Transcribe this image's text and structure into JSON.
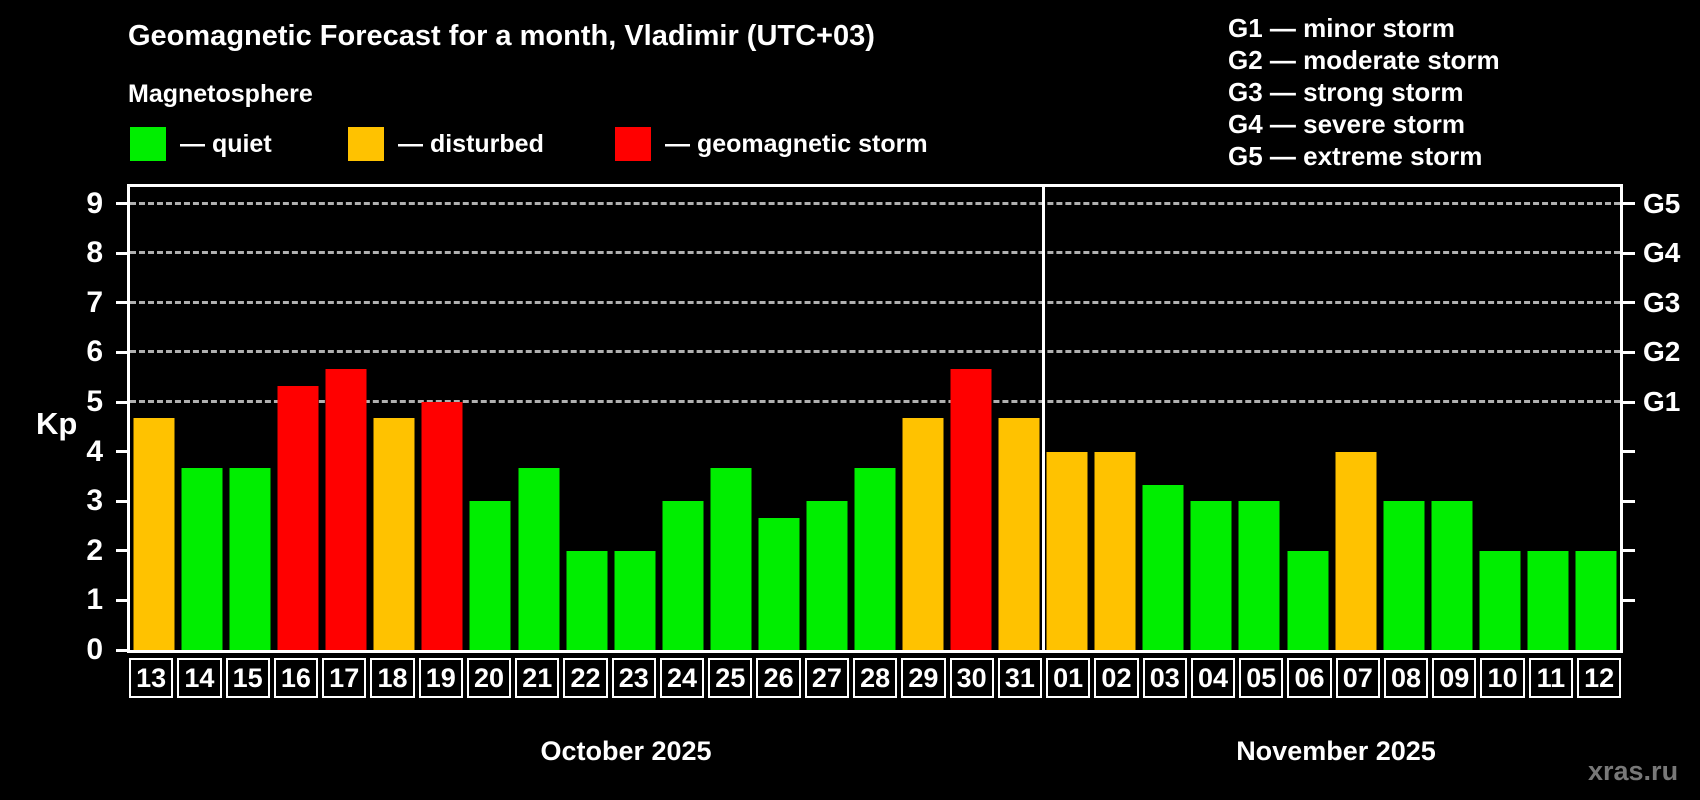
{
  "header": {
    "title": "Geomagnetic Forecast for a month, Vladimir (UTC+03)",
    "subtitle": "Magnetosphere"
  },
  "legend": {
    "items": [
      {
        "key": "quiet",
        "label": "— quiet",
        "color": "#00ee00"
      },
      {
        "key": "disturbed",
        "label": "— disturbed",
        "color": "#ffc200"
      },
      {
        "key": "storm",
        "label": "— geomagnetic storm",
        "color": "#ff0000"
      }
    ]
  },
  "storm_scale_legend": {
    "items": [
      "G1 — minor storm",
      "G2 — moderate storm",
      "G3 — strong storm",
      "G4 — severe storm",
      "G5 — extreme storm"
    ]
  },
  "watermark": "xras.ru",
  "colors": {
    "background": "#000000",
    "text": "#ffffff",
    "gridline": "#b0b0b0",
    "axis": "#ffffff",
    "quiet": "#00ee00",
    "disturbed": "#ffc200",
    "storm": "#ff0000",
    "watermark": "#787878"
  },
  "chart_data": {
    "type": "bar",
    "title": "Geomagnetic Forecast for a month, Vladimir (UTC+03)",
    "ylabel": "Kp",
    "ylim": [
      0,
      9.4
    ],
    "yticks": [
      0,
      1,
      2,
      3,
      4,
      5,
      6,
      7,
      8,
      9
    ],
    "gridlines_at": [
      5,
      6,
      7,
      8,
      9
    ],
    "grid": "dashed horizontal at storm levels only",
    "legend_position": "top-left",
    "right_axis": [
      {
        "kp": 5,
        "label": "G1"
      },
      {
        "kp": 6,
        "label": "G2"
      },
      {
        "kp": 7,
        "label": "G3"
      },
      {
        "kp": 8,
        "label": "G4"
      },
      {
        "kp": 9,
        "label": "G5"
      }
    ],
    "status_colors": {
      "quiet": "#00ee00",
      "disturbed": "#ffc200",
      "storm": "#ff0000"
    },
    "months": [
      {
        "label": "October 2025",
        "days": [
          {
            "day": "13",
            "kp": 4.67,
            "status": "disturbed"
          },
          {
            "day": "14",
            "kp": 3.67,
            "status": "quiet"
          },
          {
            "day": "15",
            "kp": 3.67,
            "status": "quiet"
          },
          {
            "day": "16",
            "kp": 5.33,
            "status": "storm"
          },
          {
            "day": "17",
            "kp": 5.67,
            "status": "storm"
          },
          {
            "day": "18",
            "kp": 4.67,
            "status": "disturbed"
          },
          {
            "day": "19",
            "kp": 5.0,
            "status": "storm"
          },
          {
            "day": "20",
            "kp": 3.0,
            "status": "quiet"
          },
          {
            "day": "21",
            "kp": 3.67,
            "status": "quiet"
          },
          {
            "day": "22",
            "kp": 2.0,
            "status": "quiet"
          },
          {
            "day": "23",
            "kp": 2.0,
            "status": "quiet"
          },
          {
            "day": "24",
            "kp": 3.0,
            "status": "quiet"
          },
          {
            "day": "25",
            "kp": 3.67,
            "status": "quiet"
          },
          {
            "day": "26",
            "kp": 2.67,
            "status": "quiet"
          },
          {
            "day": "27",
            "kp": 3.0,
            "status": "quiet"
          },
          {
            "day": "28",
            "kp": 3.67,
            "status": "quiet"
          },
          {
            "day": "29",
            "kp": 4.67,
            "status": "disturbed"
          },
          {
            "day": "30",
            "kp": 5.67,
            "status": "storm"
          },
          {
            "day": "31",
            "kp": 4.67,
            "status": "disturbed"
          }
        ]
      },
      {
        "label": "November 2025",
        "days": [
          {
            "day": "01",
            "kp": 4.0,
            "status": "disturbed"
          },
          {
            "day": "02",
            "kp": 4.0,
            "status": "disturbed"
          },
          {
            "day": "03",
            "kp": 3.33,
            "status": "quiet"
          },
          {
            "day": "04",
            "kp": 3.0,
            "status": "quiet"
          },
          {
            "day": "05",
            "kp": 3.0,
            "status": "quiet"
          },
          {
            "day": "06",
            "kp": 2.0,
            "status": "quiet"
          },
          {
            "day": "07",
            "kp": 4.0,
            "status": "disturbed"
          },
          {
            "day": "08",
            "kp": 3.0,
            "status": "quiet"
          },
          {
            "day": "09",
            "kp": 3.0,
            "status": "quiet"
          },
          {
            "day": "10",
            "kp": 2.0,
            "status": "quiet"
          },
          {
            "day": "11",
            "kp": 2.0,
            "status": "quiet"
          },
          {
            "day": "12",
            "kp": 2.0,
            "status": "quiet"
          }
        ]
      }
    ]
  }
}
